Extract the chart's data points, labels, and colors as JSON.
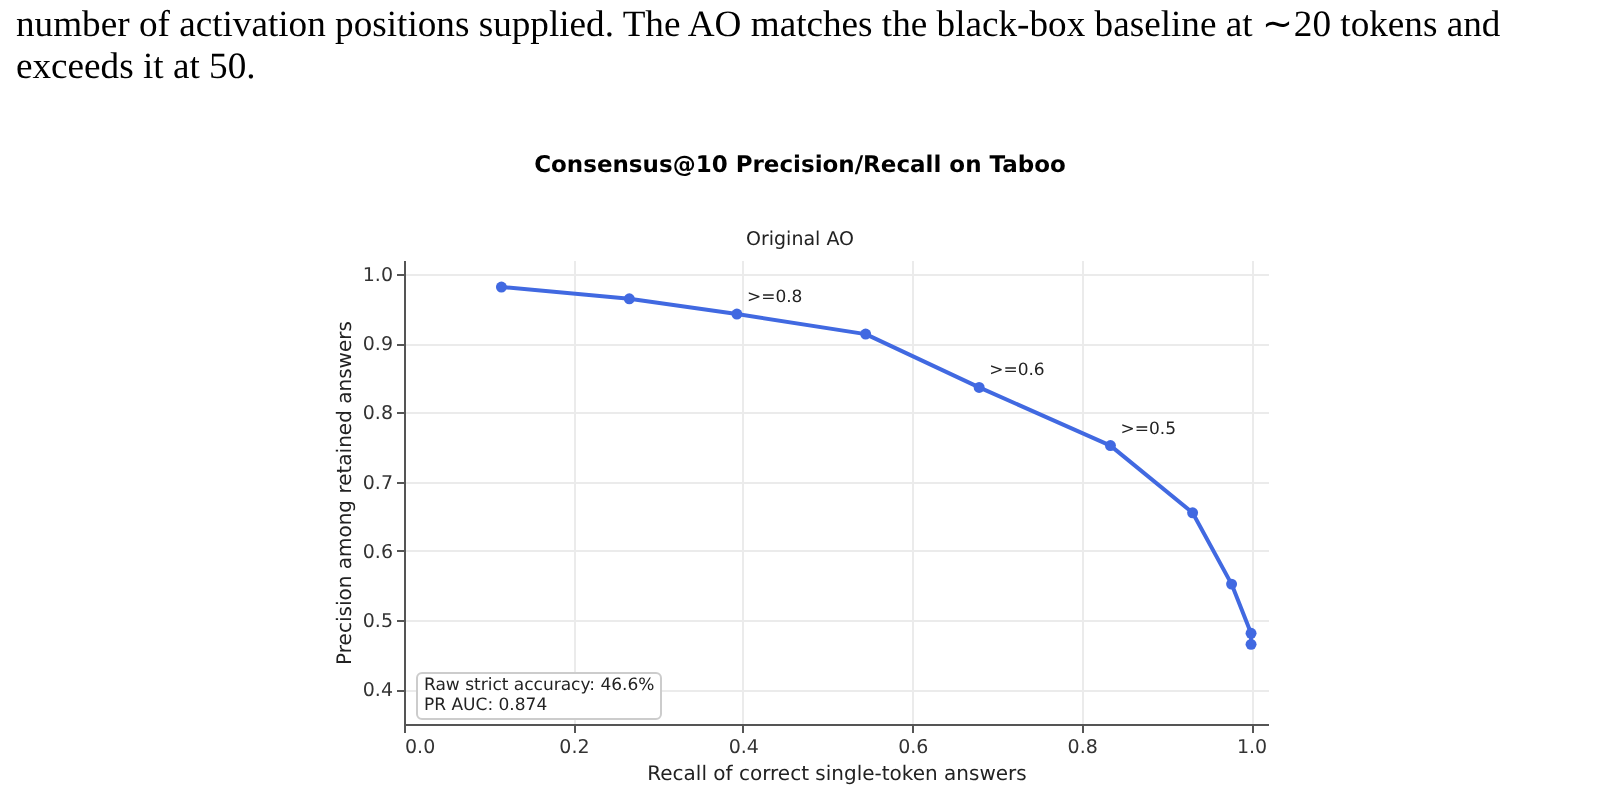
{
  "chart_data": {
    "type": "line",
    "title": "Consensus@10 Precision/Recall on Taboo",
    "subtitle": "Original AO",
    "xlabel": "Recall of correct single-token answers",
    "ylabel": "Precision among retained answers",
    "x": [
      0.115,
      0.266,
      0.393,
      0.545,
      0.679,
      0.834,
      0.931,
      0.977,
      1.0,
      1.0
    ],
    "series": [
      {
        "color": "#4169e1",
        "values": [
          0.981,
          0.964,
          0.942,
          0.913,
          0.836,
          0.752,
          0.655,
          0.552,
          0.481,
          0.465
        ]
      }
    ],
    "xlim": [
      0,
      1.02
    ],
    "xticks": [
      {
        "value": 0,
        "label": "0.0"
      },
      0.2,
      0.4,
      0.6,
      0.8,
      {
        "value": 1,
        "label": "1.0"
      }
    ],
    "ylim": [
      0.35,
      1.02
    ],
    "yticks": [
      0.4,
      0.5,
      0.6,
      0.7,
      0.8,
      0.9,
      {
        "value": 1,
        "label": "1.0"
      }
    ],
    "grid": true,
    "marker": "circle",
    "line_style": "solid",
    "annotations": [
      "number of activation positions supplied. The AO matches the black-box baseline at ∼20 tokens and exceeds it at 50.",
      {
        "text": ">=0.8",
        "x": 0.393,
        "y": 0.942
      },
      {
        "text": ">=0.6",
        "x": 0.679,
        "y": 0.836
      },
      {
        "text": ">=0.5",
        "x": 0.834,
        "y": 0.752
      },
      "Raw strict accuracy: 46.6%",
      "PR AUC: 0.874"
    ]
  }
}
